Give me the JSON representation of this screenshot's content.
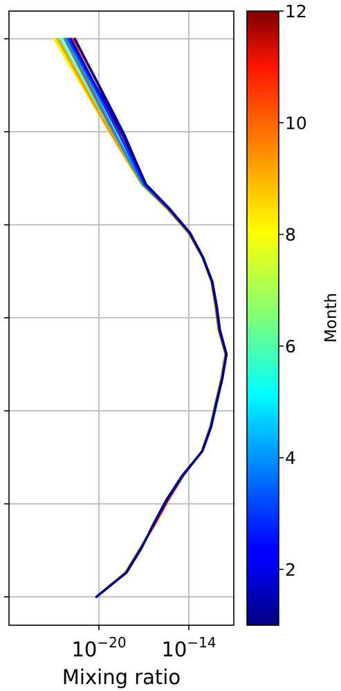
{
  "chart_data": {
    "type": "line",
    "title": "",
    "xlabel": "Mixing ratio",
    "ylabel": "",
    "x_scale": "log",
    "xlim": [
      1e-26,
      1e-11
    ],
    "x_ticks": [
      {
        "value": 1e-20,
        "base": "10",
        "exp": "−20"
      },
      {
        "value": 1e-14,
        "base": "10",
        "exp": "−14"
      }
    ],
    "y_tick_count": 7,
    "grid": true,
    "legend": "none",
    "colorbar": {
      "label": "Month",
      "min": 1,
      "max": 12,
      "ticks": [
        "2",
        "4",
        "6",
        "8",
        "10",
        "12"
      ],
      "colormap": "jet"
    },
    "series": [
      {
        "month": 1,
        "x": [
          6.8e-21,
          7e-19,
          6.9e-18,
          4.3e-17,
          3.2e-16,
          3.6e-15,
          8.1e-14,
          3.1e-13,
          7.3e-13,
          1.75e-12,
          3.3e-12,
          1.2e-12,
          7.3e-13,
          3.7e-13,
          8.8e-14,
          1.2e-14,
          5.2e-16,
          1.4e-17,
          2.7e-18,
          5.5e-19,
          8.2e-20,
          1.2e-20,
          1.7e-21,
          2.5e-22
        ]
      },
      {
        "month": 2,
        "x": [
          6.8e-21,
          6.8e-19,
          6.7e-18,
          4.5e-17,
          3.5e-16,
          3.8e-15,
          8e-14,
          3e-13,
          7e-13,
          1.7e-12,
          3.2e-12,
          1.2e-12,
          7e-13,
          3.6e-13,
          8.6e-14,
          1.2e-14,
          5e-16,
          1.3e-17,
          2.3e-18,
          4.2e-19,
          5.5e-20,
          7e-21,
          9e-22,
          1.2e-22
        ]
      },
      {
        "month": 3,
        "x": [
          6.8e-21,
          6.7e-19,
          6.5e-18,
          4.6e-17,
          3.6e-16,
          3.9e-15,
          7.9e-14,
          2.9e-13,
          6.8e-13,
          1.65e-12,
          3.1e-12,
          1.1e-12,
          6.8e-13,
          3.5e-13,
          8.5e-14,
          1.1e-14,
          4.6e-16,
          1.1e-17,
          1.6e-18,
          2.5e-19,
          3.5e-20,
          5e-21,
          6.5e-22,
          8.5e-23
        ]
      },
      {
        "month": 4,
        "x": [
          6.8e-21,
          6.5e-19,
          6.3e-18,
          4.8e-17,
          3.8e-16,
          4.1e-15,
          7.7e-14,
          2.8e-13,
          6.6e-13,
          1.6e-12,
          3e-12,
          1.05e-12,
          6.5e-13,
          3.4e-13,
          8.3e-14,
          1.1e-14,
          4.2e-16,
          9e-18,
          1.1e-18,
          1.5e-19,
          2.2e-20,
          3.3e-21,
          4.5e-22,
          6e-23
        ]
      },
      {
        "month": 5,
        "x": [
          6.8e-21,
          6.2e-19,
          6e-18,
          5e-17,
          4e-16,
          4.2e-15,
          7.5e-14,
          2.7e-13,
          6.4e-13,
          1.55e-12,
          2.9e-12,
          1e-12,
          6.2e-13,
          3.3e-13,
          8.2e-14,
          1e-14,
          3.9e-16,
          8e-18,
          9e-19,
          1.1e-19,
          1.5e-20,
          2.2e-21,
          3.2e-22,
          4.5e-23
        ]
      },
      {
        "month": 6,
        "x": [
          6.8e-21,
          6e-19,
          5.8e-18,
          5.3e-17,
          4.2e-16,
          4.3e-15,
          7.3e-14,
          2.7e-13,
          6.2e-13,
          1.5e-12,
          2.8e-12,
          9.8e-13,
          6e-13,
          3.2e-13,
          8e-14,
          1e-14,
          3.7e-16,
          7.5e-18,
          8e-19,
          9e-20,
          1.1e-20,
          1.4e-21,
          1.9e-22,
          2.6e-23
        ]
      },
      {
        "month": 7,
        "x": [
          6.8e-21,
          5.8e-19,
          5.6e-18,
          5.5e-17,
          4.4e-16,
          4.4e-15,
          7.1e-14,
          2.6e-13,
          6e-13,
          1.45e-12,
          2.7e-12,
          9.5e-13,
          5.8e-13,
          3.1e-13,
          7.8e-14,
          9.5e-15,
          3.6e-16,
          7.2e-18,
          7.2e-19,
          7.5e-20,
          8e-21,
          9e-22,
          1e-22,
          1.2e-23
        ]
      },
      {
        "month": 8,
        "x": [
          6.8e-21,
          5.8e-19,
          5.6e-18,
          5.7e-17,
          4.5e-16,
          4.5e-15,
          7.1e-14,
          2.6e-13,
          6e-13,
          1.45e-12,
          2.7e-12,
          9.5e-13,
          5.8e-13,
          3.1e-13,
          7.8e-14,
          9.5e-15,
          3.5e-16,
          7e-18,
          7e-19,
          7.2e-20,
          7.8e-21,
          8.5e-22,
          9e-23,
          1e-23
        ]
      },
      {
        "month": 9,
        "x": [
          6.8e-21,
          6e-19,
          5.8e-18,
          5.6e-17,
          4.4e-16,
          4.4e-15,
          7.3e-14,
          2.7e-13,
          6.2e-13,
          1.5e-12,
          2.8e-12,
          9.8e-13,
          6e-13,
          3.2e-13,
          8e-14,
          1e-14,
          3.6e-16,
          7.5e-18,
          7.5e-19,
          7.8e-20,
          9e-21,
          1.1e-21,
          1.4e-22,
          1.8e-23
        ]
      },
      {
        "month": 10,
        "x": [
          6.8e-21,
          6.2e-19,
          6e-18,
          5.4e-17,
          4.2e-16,
          4.2e-15,
          7.5e-14,
          2.8e-13,
          6.4e-13,
          1.55e-12,
          2.9e-12,
          1e-12,
          6.2e-13,
          3.3e-13,
          8.2e-14,
          1e-14,
          3.9e-16,
          8.5e-18,
          1e-18,
          1.3e-19,
          1.8e-20,
          2.6e-21,
          3.8e-22,
          5.5e-23
        ]
      },
      {
        "month": 11,
        "x": [
          6.8e-21,
          6.5e-19,
          6.3e-18,
          5e-17,
          3.8e-16,
          4e-15,
          7.8e-14,
          2.9e-13,
          6.8e-13,
          1.65e-12,
          3.1e-12,
          1.1e-12,
          6.8e-13,
          3.5e-13,
          8.5e-14,
          1.1e-14,
          4.5e-16,
          1.1e-17,
          1.7e-18,
          2.8e-19,
          4.2e-20,
          6.5e-21,
          1e-21,
          1.5e-22
        ]
      },
      {
        "month": 12,
        "x": [
          6.8e-21,
          6.8e-19,
          6.7e-18,
          4.6e-17,
          3.4e-16,
          3.7e-15,
          8e-14,
          3e-13,
          7.1e-13,
          1.7e-12,
          3.2e-12,
          1.15e-12,
          7e-13,
          3.6e-13,
          8.7e-14,
          1.2e-14,
          5e-16,
          1.3e-17,
          2.4e-18,
          4.5e-19,
          7e-20,
          1.1e-20,
          1.6e-21,
          2.3e-22
        ]
      }
    ]
  }
}
